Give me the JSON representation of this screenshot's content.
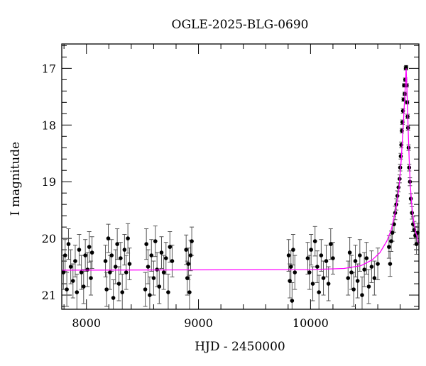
{
  "chart_data": {
    "type": "scatter",
    "title": "OGLE-2025-BLG-0690",
    "xlabel": "HJD - 2450000",
    "ylabel": "I magnitude",
    "xlim": [
      7780,
      10967
    ],
    "ylim": [
      21.25,
      16.57
    ],
    "y_inverted": true,
    "grid": false,
    "x_ticks": [
      8000,
      9000,
      10000
    ],
    "y_ticks": [
      17,
      18,
      19,
      20,
      21
    ],
    "x_minor_step": 200,
    "y_minor_step": 0.2,
    "colors": {
      "points": "#000000",
      "errorbars": "#555555",
      "model": "#ff00ff"
    },
    "points": [
      [
        7795,
        20.6,
        0.3
      ],
      [
        7810,
        20.3,
        0.28
      ],
      [
        7825,
        20.9,
        0.3
      ],
      [
        7840,
        20.1,
        0.27
      ],
      [
        7860,
        20.5,
        0.3
      ],
      [
        7880,
        20.75,
        0.3
      ],
      [
        7900,
        20.4,
        0.28
      ],
      [
        7915,
        20.95,
        0.32
      ],
      [
        7935,
        20.2,
        0.27
      ],
      [
        7955,
        20.6,
        0.3
      ],
      [
        7975,
        20.85,
        0.3
      ],
      [
        7990,
        20.3,
        0.28
      ],
      [
        8010,
        20.55,
        0.3
      ],
      [
        8025,
        20.15,
        0.27
      ],
      [
        8040,
        20.7,
        0.3
      ],
      [
        8050,
        20.25,
        0.28
      ],
      [
        8170,
        20.4,
        0.28
      ],
      [
        8180,
        20.9,
        0.3
      ],
      [
        8195,
        20.0,
        0.25
      ],
      [
        8210,
        20.6,
        0.3
      ],
      [
        8225,
        20.3,
        0.28
      ],
      [
        8240,
        21.05,
        0.32
      ],
      [
        8260,
        20.5,
        0.3
      ],
      [
        8275,
        20.1,
        0.27
      ],
      [
        8290,
        20.8,
        0.3
      ],
      [
        8305,
        20.35,
        0.28
      ],
      [
        8320,
        20.95,
        0.32
      ],
      [
        8340,
        20.2,
        0.27
      ],
      [
        8355,
        20.6,
        0.3
      ],
      [
        8370,
        20.0,
        0.26
      ],
      [
        8385,
        20.45,
        0.28
      ],
      [
        8525,
        20.9,
        0.3
      ],
      [
        8535,
        20.1,
        0.27
      ],
      [
        8550,
        20.5,
        0.3
      ],
      [
        8565,
        21.0,
        0.32
      ],
      [
        8580,
        20.3,
        0.28
      ],
      [
        8600,
        20.7,
        0.3
      ],
      [
        8615,
        20.05,
        0.27
      ],
      [
        8630,
        20.55,
        0.3
      ],
      [
        8650,
        20.85,
        0.3
      ],
      [
        8670,
        20.25,
        0.28
      ],
      [
        8690,
        20.6,
        0.3
      ],
      [
        8710,
        20.35,
        0.28
      ],
      [
        8730,
        20.95,
        0.32
      ],
      [
        8745,
        20.15,
        0.27
      ],
      [
        8765,
        20.4,
        0.28
      ],
      [
        8890,
        20.2,
        0.26
      ],
      [
        8900,
        20.7,
        0.3
      ],
      [
        8910,
        20.45,
        0.28
      ],
      [
        8920,
        20.95,
        0.3
      ],
      [
        8930,
        20.3,
        0.27
      ],
      [
        8940,
        20.05,
        0.25
      ],
      [
        9805,
        20.3,
        0.28
      ],
      [
        9815,
        20.75,
        0.3
      ],
      [
        9825,
        20.5,
        0.28
      ],
      [
        9835,
        21.1,
        0.32
      ],
      [
        9845,
        20.2,
        0.27
      ],
      [
        9860,
        20.6,
        0.3
      ],
      [
        9975,
        20.35,
        0.28
      ],
      [
        9990,
        20.6,
        0.3
      ],
      [
        10005,
        20.2,
        0.27
      ],
      [
        10020,
        20.8,
        0.3
      ],
      [
        10040,
        20.05,
        0.26
      ],
      [
        10060,
        20.5,
        0.28
      ],
      [
        10075,
        20.95,
        0.3
      ],
      [
        10095,
        20.3,
        0.28
      ],
      [
        10115,
        20.7,
        0.3
      ],
      [
        10140,
        20.4,
        0.28
      ],
      [
        10160,
        20.8,
        0.3
      ],
      [
        10180,
        20.1,
        0.27
      ],
      [
        10200,
        20.35,
        0.28
      ],
      [
        10335,
        20.7,
        0.3
      ],
      [
        10350,
        20.25,
        0.27
      ],
      [
        10365,
        20.6,
        0.3
      ],
      [
        10385,
        20.9,
        0.3
      ],
      [
        10400,
        20.4,
        0.28
      ],
      [
        10420,
        20.75,
        0.3
      ],
      [
        10440,
        20.3,
        0.28
      ],
      [
        10460,
        21.0,
        0.32
      ],
      [
        10480,
        20.55,
        0.3
      ],
      [
        10500,
        20.35,
        0.28
      ],
      [
        10520,
        20.85,
        0.3
      ],
      [
        10545,
        20.5,
        0.28
      ],
      [
        10570,
        20.7,
        0.3
      ],
      [
        10600,
        20.45,
        0.28
      ],
      [
        10700,
        20.15,
        0.2
      ],
      [
        10710,
        20.45,
        0.22
      ],
      [
        10720,
        20.05,
        0.18
      ],
      [
        10730,
        19.9,
        0.15
      ],
      [
        10745,
        19.75,
        0.14
      ],
      [
        10755,
        19.55,
        0.12
      ],
      [
        10765,
        19.4,
        0.1
      ],
      [
        10775,
        19.25,
        0.09
      ],
      [
        10785,
        19.1,
        0.08
      ],
      [
        10795,
        18.95,
        0.07
      ],
      [
        10800,
        18.75,
        0.06
      ],
      [
        10805,
        18.55,
        0.05
      ],
      [
        10810,
        18.35,
        0.05
      ],
      [
        10815,
        18.1,
        0.04
      ],
      [
        10820,
        17.95,
        0.04
      ],
      [
        10825,
        17.75,
        0.04
      ],
      [
        10830,
        17.55,
        0.03
      ],
      [
        10835,
        17.3,
        0.03
      ],
      [
        10840,
        17.45,
        0.03
      ],
      [
        10845,
        17.2,
        0.03
      ],
      [
        10850,
        17.0,
        0.03
      ],
      [
        10853,
        16.98,
        0.03
      ],
      [
        10858,
        17.3,
        0.03
      ],
      [
        10862,
        17.6,
        0.03
      ],
      [
        10866,
        17.85,
        0.04
      ],
      [
        10870,
        18.05,
        0.04
      ],
      [
        10875,
        18.4,
        0.05
      ],
      [
        10880,
        18.75,
        0.06
      ],
      [
        10887,
        19.0,
        0.07
      ],
      [
        10895,
        19.3,
        0.09
      ],
      [
        10905,
        19.55,
        0.11
      ],
      [
        10915,
        19.75,
        0.13
      ],
      [
        10925,
        19.85,
        0.15
      ],
      [
        10935,
        19.95,
        0.16
      ],
      [
        10945,
        20.1,
        0.18
      ],
      [
        10955,
        19.9,
        0.17
      ]
    ],
    "model": [
      [
        7780,
        20.56
      ],
      [
        10000,
        20.55
      ],
      [
        10300,
        20.53
      ],
      [
        10450,
        20.48
      ],
      [
        10550,
        20.38
      ],
      [
        10620,
        20.25
      ],
      [
        10680,
        20.05
      ],
      [
        10720,
        19.85
      ],
      [
        10760,
        19.5
      ],
      [
        10790,
        19.1
      ],
      [
        10810,
        18.6
      ],
      [
        10830,
        17.9
      ],
      [
        10845,
        17.35
      ],
      [
        10853,
        17.0
      ],
      [
        10860,
        17.35
      ],
      [
        10870,
        18.0
      ],
      [
        10880,
        18.6
      ],
      [
        10890,
        19.05
      ],
      [
        10905,
        19.45
      ],
      [
        10920,
        19.7
      ],
      [
        10940,
        19.9
      ],
      [
        10967,
        20.1
      ]
    ]
  }
}
